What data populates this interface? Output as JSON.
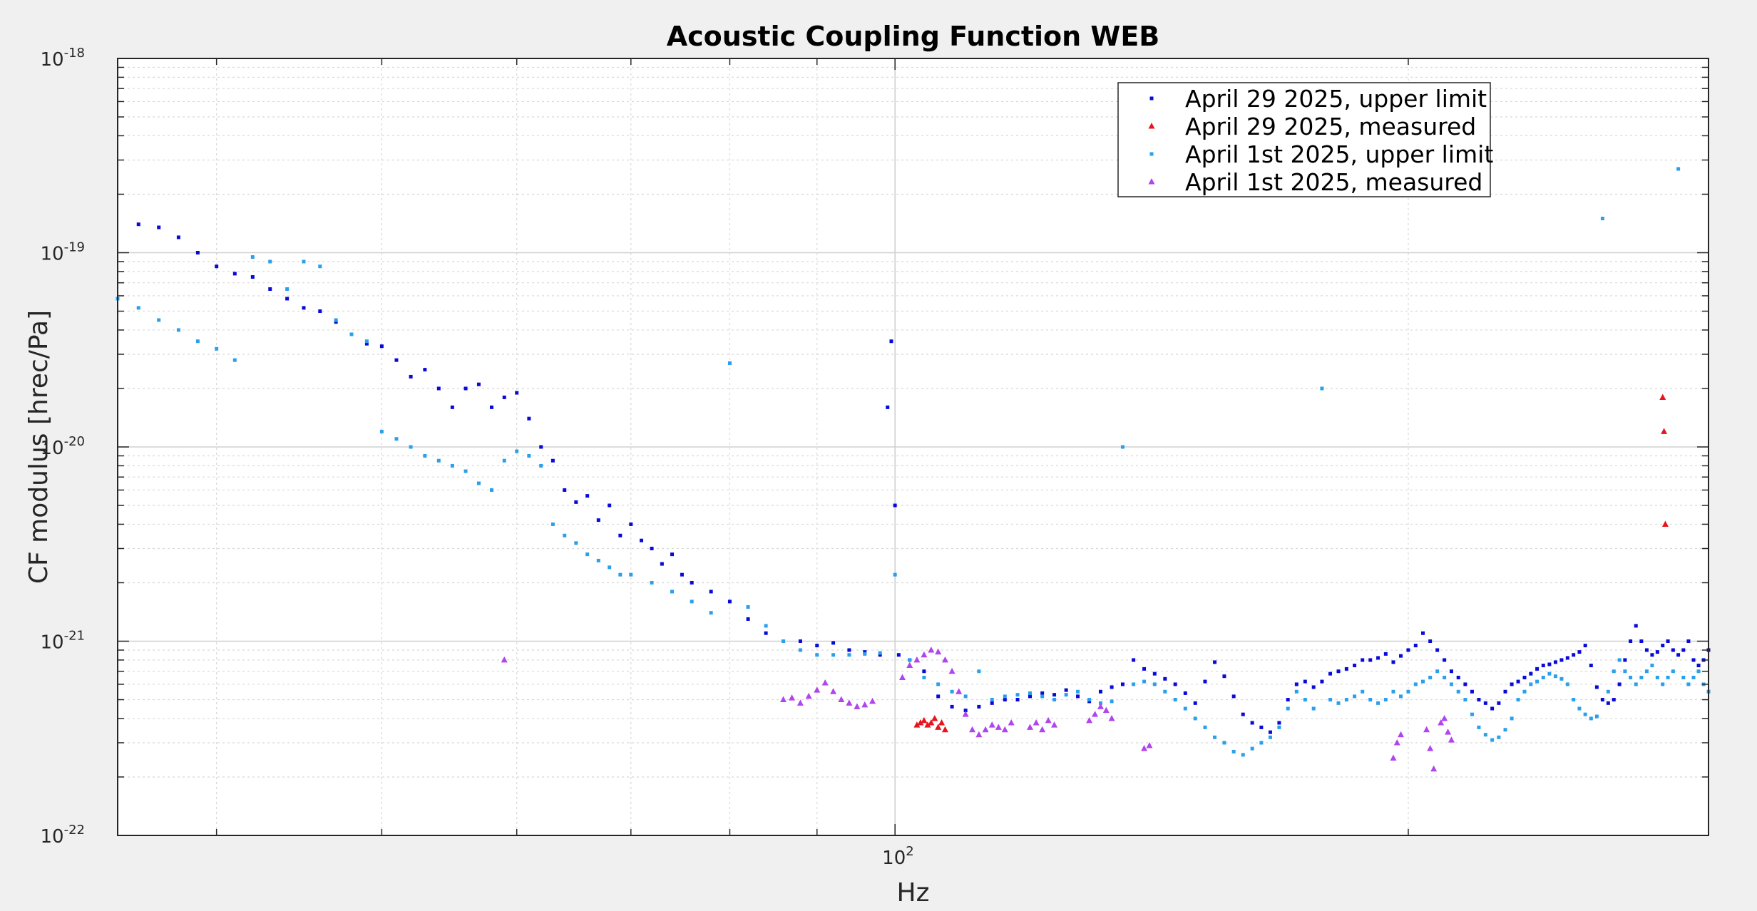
{
  "chart_data": {
    "type": "scatter",
    "title": "Acoustic Coupling Function WEB",
    "xlabel": "Hz",
    "ylabel": "CF modulus [hrec/Pa]",
    "xscale": "log",
    "yscale": "log",
    "xlim": [
      35,
      300
    ],
    "ylim": [
      1e-22,
      1e-18
    ],
    "x_ticks": [
      {
        "base": "10",
        "exp": "2",
        "value": 100
      }
    ],
    "y_ticks": [
      {
        "base": "10",
        "exp": "-22",
        "value": 1e-22
      },
      {
        "base": "10",
        "exp": "-21",
        "value": 1e-21
      },
      {
        "base": "10",
        "exp": "-20",
        "value": 1e-20
      },
      {
        "base": "10",
        "exp": "-19",
        "value": 1e-19
      },
      {
        "base": "10",
        "exp": "-18",
        "value": 1e-18
      }
    ],
    "grid": true,
    "minor_grid": true,
    "legend_position": "top-right",
    "colors": {
      "april29_upper": "#0a0ad8",
      "april29_measured": "#e8141c",
      "april1_upper": "#2aa0ec",
      "april1_measured": "#b044ee"
    },
    "series": [
      {
        "name": "April 29 2025, upper limit",
        "color": "#0a0ad8",
        "marker": "dot",
        "x": [
          36,
          37,
          38,
          39,
          40,
          41,
          42,
          43,
          44,
          45,
          46,
          47,
          48,
          49,
          50,
          51,
          52,
          53,
          54,
          55,
          56,
          57,
          58,
          59,
          60,
          61,
          62,
          63,
          64,
          65,
          66,
          67,
          68,
          69,
          70,
          71,
          72,
          73,
          74,
          75,
          76,
          78,
          80,
          82,
          84,
          86,
          88,
          90,
          92,
          94,
          96,
          98,
          99,
          99.5,
          100,
          100.5,
          102,
          104,
          106,
          108,
          110,
          112,
          114,
          116,
          118,
          120,
          122,
          124,
          126,
          128,
          130,
          132,
          134,
          136,
          138,
          140,
          142,
          144,
          146,
          148,
          150,
          152,
          154,
          156,
          158,
          160,
          162,
          164,
          166,
          168,
          170,
          172,
          174,
          176,
          178,
          180,
          182,
          184,
          186,
          188,
          190,
          192,
          194,
          196,
          198,
          200,
          202,
          204,
          206,
          208,
          210,
          212,
          214,
          216,
          218,
          220,
          222,
          224,
          226,
          228,
          230,
          232,
          234,
          236,
          238,
          240,
          242,
          244,
          246,
          248,
          250,
          252,
          254,
          256,
          258,
          260,
          262,
          264,
          266,
          268,
          270,
          272,
          274,
          276,
          278,
          280,
          282,
          284,
          286,
          288,
          290,
          292,
          294,
          296,
          298,
          300
        ],
        "y": [
          1.4e-19,
          1.35e-19,
          1.2e-19,
          1e-19,
          8.5e-20,
          7.8e-20,
          7.5e-20,
          6.5e-20,
          5.8e-20,
          5.2e-20,
          5e-20,
          4.4e-20,
          3.8e-20,
          3.4e-20,
          3.3e-20,
          2.8e-20,
          2.3e-20,
          2.5e-20,
          2e-20,
          1.6e-20,
          2e-20,
          2.1e-20,
          1.6e-20,
          1.8e-20,
          1.9e-20,
          1.4e-20,
          1e-20,
          8.5e-21,
          6e-21,
          5.2e-21,
          5.6e-21,
          4.2e-21,
          5e-21,
          3.5e-21,
          4e-21,
          3.3e-21,
          3e-21,
          2.5e-21,
          2.8e-21,
          2.2e-21,
          2e-21,
          1.8e-21,
          1.6e-21,
          1.3e-21,
          1.1e-21,
          1e-21,
          1e-21,
          9.5e-22,
          9.8e-22,
          9e-22,
          8.8e-22,
          8.5e-22,
          1.6e-20,
          3.5e-20,
          5e-21,
          8.5e-22,
          8e-22,
          7e-22,
          5.2e-22,
          4.6e-22,
          4.4e-22,
          4.6e-22,
          4.8e-22,
          5e-22,
          5e-22,
          5.2e-22,
          5.4e-22,
          5.3e-22,
          5.6e-22,
          5.2e-22,
          4.9e-22,
          5.5e-22,
          5.8e-22,
          6e-22,
          8e-22,
          7.2e-22,
          6.8e-22,
          6.4e-22,
          6e-22,
          5.4e-22,
          4.8e-22,
          6.2e-22,
          7.8e-22,
          6.6e-22,
          5.2e-22,
          4.2e-22,
          3.8e-22,
          3.6e-22,
          3.4e-22,
          3.8e-22,
          5e-22,
          6e-22,
          6.2e-22,
          5.8e-22,
          6.2e-22,
          6.8e-22,
          7e-22,
          7.2e-22,
          7.5e-22,
          8e-22,
          8e-22,
          8.2e-22,
          8.6e-22,
          7.8e-22,
          8.4e-22,
          9e-22,
          9.5e-22,
          1.1e-21,
          1e-21,
          9e-22,
          8e-22,
          7e-22,
          6.5e-22,
          6e-22,
          5.5e-22,
          5e-22,
          4.8e-22,
          4.5e-22,
          4.8e-22,
          5.5e-22,
          6e-22,
          6.2e-22,
          6.5e-22,
          6.8e-22,
          7.2e-22,
          7.5e-22,
          7.6e-22,
          7.8e-22,
          8e-22,
          8.2e-22,
          8.5e-22,
          8.8e-22,
          9.5e-22,
          7.5e-22,
          5.8e-22,
          5e-22,
          4.8e-22,
          5e-22,
          6e-22,
          8e-22,
          1e-21,
          1.2e-21,
          1e-21,
          9e-22,
          8.5e-22,
          8.8e-22,
          9.5e-22,
          1e-21,
          9e-22,
          8.5e-22,
          9e-22,
          1e-21,
          8e-22,
          7.5e-22,
          8e-22,
          9e-22
        ]
      },
      {
        "name": "April 29 2025, measured",
        "color": "#e8141c",
        "marker": "triangle",
        "x": [
          103,
          103.5,
          104,
          104.5,
          105,
          105.5,
          106,
          106.5,
          107,
          282,
          282.5,
          283
        ],
        "y": [
          3.7e-22,
          3.8e-22,
          3.9e-22,
          3.7e-22,
          3.8e-22,
          4e-22,
          3.6e-22,
          3.8e-22,
          3.5e-22,
          1.8e-20,
          1.2e-20,
          4e-21
        ]
      },
      {
        "name": "April 1st 2025, upper limit",
        "color": "#2aa0ec",
        "marker": "dot",
        "x": [
          35,
          36,
          37,
          38,
          39,
          40,
          41,
          42,
          43,
          44,
          45,
          46,
          47,
          48,
          49,
          50,
          51,
          52,
          53,
          54,
          55,
          56,
          57,
          58,
          59,
          60,
          61,
          62,
          63,
          64,
          65,
          66,
          67,
          68,
          69,
          70,
          72,
          74,
          76,
          78,
          80,
          82,
          84,
          86,
          88,
          90,
          92,
          94,
          96,
          98,
          100,
          102,
          104,
          106,
          108,
          110,
          112,
          114,
          116,
          118,
          120,
          122,
          124,
          126,
          128,
          130,
          132,
          134,
          136,
          138,
          140,
          142,
          144,
          146,
          148,
          150,
          152,
          154,
          156,
          158,
          160,
          162,
          164,
          166,
          168,
          170,
          172,
          174,
          176,
          178,
          180,
          182,
          184,
          186,
          188,
          190,
          192,
          194,
          196,
          198,
          200,
          202,
          204,
          206,
          208,
          210,
          212,
          214,
          216,
          218,
          220,
          222,
          224,
          226,
          228,
          230,
          232,
          234,
          236,
          238,
          240,
          242,
          244,
          246,
          248,
          250,
          252,
          254,
          256,
          258,
          260,
          262,
          264,
          266,
          268,
          270,
          272,
          274,
          276,
          278,
          280,
          282,
          284,
          286,
          288,
          290,
          292,
          294,
          296,
          298,
          300
        ],
        "y": [
          5.8e-20,
          5.2e-20,
          4.5e-20,
          4e-20,
          3.5e-20,
          3.2e-20,
          2.8e-20,
          9.5e-20,
          9e-20,
          6.5e-20,
          9e-20,
          8.5e-20,
          4.5e-20,
          3.8e-20,
          3.5e-20,
          1.2e-20,
          1.1e-20,
          1e-20,
          9e-21,
          8.5e-21,
          8e-21,
          7.5e-21,
          6.5e-21,
          6e-21,
          8.5e-21,
          9.5e-21,
          9e-21,
          8e-21,
          4e-21,
          3.5e-21,
          3.2e-21,
          2.8e-21,
          2.6e-21,
          2.4e-21,
          2.2e-21,
          2.2e-21,
          2e-21,
          1.8e-21,
          1.6e-21,
          1.4e-21,
          2.7e-20,
          1.5e-21,
          1.2e-21,
          1e-21,
          9e-22,
          8.5e-22,
          8.5e-22,
          8.5e-22,
          8.6e-22,
          8.7e-22,
          2.2e-21,
          8e-22,
          6.5e-22,
          6e-22,
          5.5e-22,
          5.2e-22,
          7e-22,
          5e-22,
          5.2e-22,
          5.3e-22,
          5.4e-22,
          5.2e-22,
          5e-22,
          5.3e-22,
          5.5e-22,
          5e-22,
          4.8e-22,
          4.9e-22,
          1e-20,
          6e-22,
          6.2e-22,
          6e-22,
          5.5e-22,
          5e-22,
          4.5e-22,
          4e-22,
          3.6e-22,
          3.2e-22,
          3e-22,
          2.7e-22,
          2.6e-22,
          2.8e-22,
          3e-22,
          3.2e-22,
          3.6e-22,
          4.5e-22,
          5.5e-22,
          5e-22,
          4.5e-22,
          2e-20,
          5e-22,
          4.8e-22,
          5e-22,
          5.2e-22,
          5.5e-22,
          5e-22,
          4.8e-22,
          5e-22,
          5.5e-22,
          5.2e-22,
          5.5e-22,
          6e-22,
          6.2e-22,
          6.5e-22,
          7e-22,
          6.5e-22,
          6e-22,
          5.5e-22,
          5e-22,
          4.2e-22,
          3.6e-22,
          3.3e-22,
          3.1e-22,
          3.2e-22,
          3.5e-22,
          4e-22,
          5e-22,
          5.5e-22,
          6e-22,
          6.2e-22,
          6.5e-22,
          6.8e-22,
          6.6e-22,
          6.4e-22,
          6e-22,
          5e-22,
          4.5e-22,
          4.2e-22,
          4e-22,
          4.1e-22,
          1.5e-19,
          5.5e-22,
          7e-22,
          8e-22,
          7e-22,
          6.5e-22,
          6e-22,
          6.5e-22,
          7e-22,
          7.5e-22,
          6.5e-22,
          6e-22,
          6.5e-22,
          7e-22,
          2.7e-19,
          6.5e-22,
          6e-22,
          6.5e-22,
          7e-22,
          6e-22,
          5.5e-22
        ]
      },
      {
        "name": "April 1st 2025, measured",
        "color": "#b044ee",
        "marker": "triangle",
        "x": [
          59,
          86,
          87,
          88,
          89,
          90,
          91,
          92,
          93,
          94,
          95,
          96,
          97,
          101,
          102,
          103,
          104,
          105,
          106,
          107,
          108,
          109,
          110,
          111,
          112,
          113,
          114,
          115,
          116,
          117,
          120,
          121,
          122,
          123,
          124,
          130,
          131,
          132,
          133,
          134,
          140,
          141,
          196,
          197,
          198,
          205,
          206,
          207,
          209,
          210,
          211,
          212
        ],
        "y": [
          8e-22,
          5e-22,
          5.1e-22,
          4.8e-22,
          5.2e-22,
          5.6e-22,
          6.1e-22,
          5.5e-22,
          5e-22,
          4.8e-22,
          4.6e-22,
          4.7e-22,
          4.9e-22,
          6.5e-22,
          7.5e-22,
          8e-22,
          8.5e-22,
          9e-22,
          8.8e-22,
          8e-22,
          7e-22,
          5.5e-22,
          4.2e-22,
          3.5e-22,
          3.3e-22,
          3.5e-22,
          3.7e-22,
          3.6e-22,
          3.5e-22,
          3.8e-22,
          3.6e-22,
          3.8e-22,
          3.5e-22,
          3.9e-22,
          3.7e-22,
          3.9e-22,
          4.2e-22,
          4.6e-22,
          4.4e-22,
          4e-22,
          2.8e-22,
          2.9e-22,
          2.5e-22,
          3e-22,
          3.3e-22,
          3.5e-22,
          2.8e-22,
          2.2e-22,
          3.8e-22,
          4e-22,
          3.4e-22,
          3.1e-22
        ]
      }
    ]
  }
}
